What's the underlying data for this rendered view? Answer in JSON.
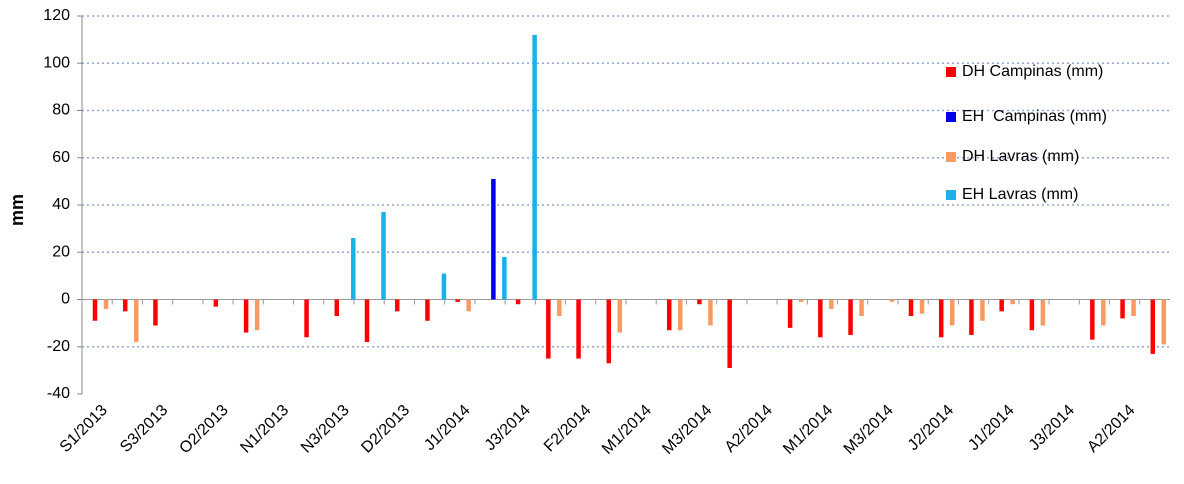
{
  "chart_data": {
    "type": "bar",
    "y_label": "mm",
    "categories": [
      "S1/2013",
      null,
      "S3/2013",
      null,
      "O2/2013",
      null,
      "N1/2013",
      null,
      "N3/2013",
      null,
      "D2/2013",
      null,
      "J1/2014",
      null,
      "J3/2014",
      null,
      "F2/2014",
      null,
      "M1/2014",
      null,
      "M3/2014",
      null,
      "A2/2014",
      null,
      "M1/2014",
      null,
      "M3/2014",
      null,
      "J2/2014",
      null,
      "J1/2014",
      null,
      "J3/2014",
      null,
      "A2/2014",
      null
    ],
    "series": [
      {
        "name": "DH Campinas (mm)",
        "color": "#ff0000",
        "values": [
          -9,
          -5,
          -11,
          null,
          -3,
          -14,
          null,
          -16,
          -7,
          -18,
          -5,
          -9,
          -1,
          null,
          -2,
          -25,
          -25,
          -27,
          null,
          -13,
          -2,
          -29,
          null,
          -12,
          -16,
          -15,
          null,
          -7,
          -16,
          -15,
          -5,
          -13,
          null,
          -17,
          -8,
          -23
        ]
      },
      {
        "name": "EH  Campinas (mm)",
        "color": "#0000ee",
        "values": [
          null,
          null,
          null,
          null,
          null,
          null,
          null,
          null,
          null,
          null,
          null,
          null,
          null,
          51,
          null,
          null,
          null,
          null,
          null,
          null,
          null,
          null,
          null,
          null,
          null,
          null,
          null,
          null,
          null,
          null,
          null,
          null,
          null,
          null,
          null,
          null
        ]
      },
      {
        "name": "DH Lavras (mm)",
        "color": "#f79a64",
        "values": [
          -4,
          -18,
          null,
          null,
          null,
          -13,
          null,
          null,
          null,
          null,
          null,
          null,
          -5,
          null,
          null,
          -7,
          null,
          -14,
          null,
          -13,
          -11,
          null,
          null,
          -1,
          -4,
          -7,
          -1,
          -6,
          -11,
          -9,
          -2,
          -11,
          null,
          -11,
          -7,
          -19
        ]
      },
      {
        "name": "EH Lavras (mm)",
        "color": "#1ab0e8",
        "values": [
          null,
          null,
          null,
          null,
          null,
          null,
          null,
          null,
          26,
          37,
          null,
          11,
          null,
          18,
          112,
          null,
          null,
          null,
          null,
          null,
          null,
          null,
          null,
          null,
          null,
          null,
          null,
          null,
          null,
          null,
          null,
          null,
          null,
          null,
          null,
          null
        ]
      }
    ],
    "ylim": [
      -40,
      120
    ],
    "yticks": [
      -40,
      -20,
      0,
      20,
      40,
      60,
      80,
      100,
      120
    ],
    "grid": true,
    "legend": "upper right"
  }
}
